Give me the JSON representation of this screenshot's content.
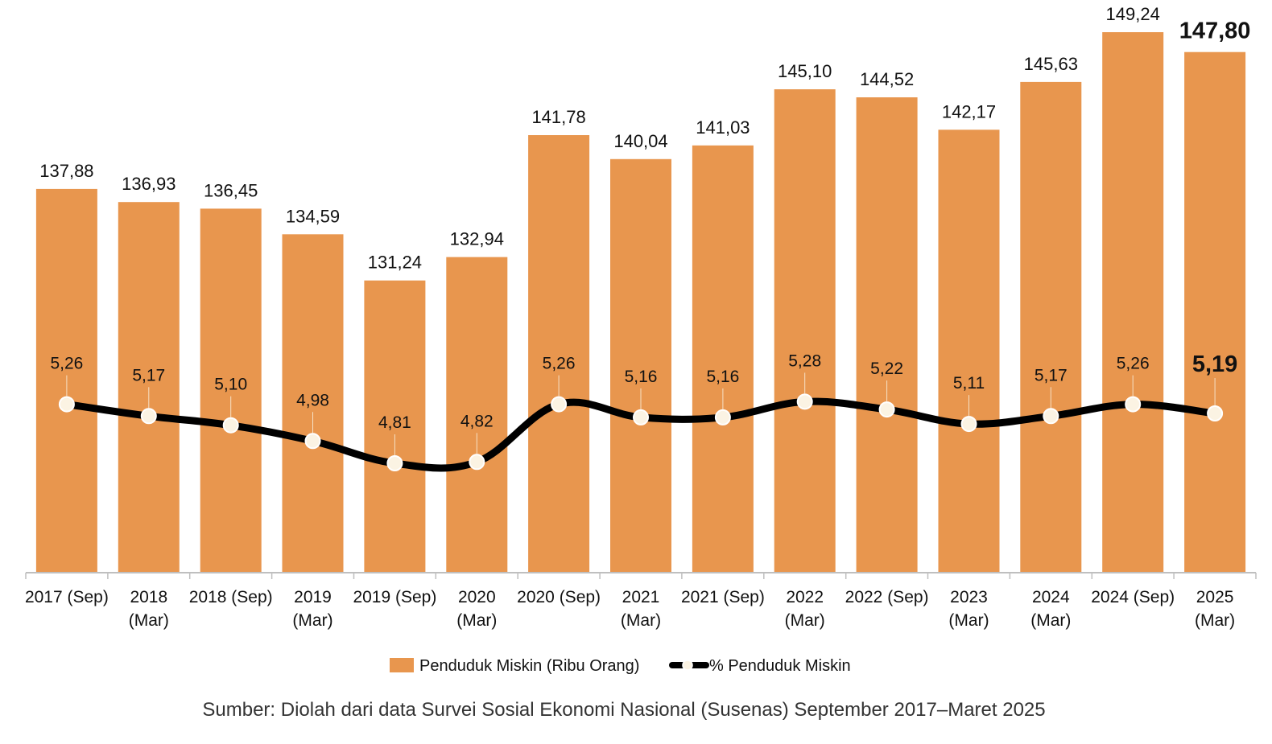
{
  "chart_data": {
    "type": "bar",
    "categories": [
      [
        "2017 (Sep)"
      ],
      [
        "2018",
        "(Mar)"
      ],
      [
        "2018 (Sep)"
      ],
      [
        "2019",
        "(Mar)"
      ],
      [
        "2019 (Sep)"
      ],
      [
        "2020",
        "(Mar)"
      ],
      [
        "2020 (Sep)"
      ],
      [
        "2021",
        "(Mar)"
      ],
      [
        "2021 (Sep)"
      ],
      [
        "2022",
        "(Mar)"
      ],
      [
        "2022 (Sep)"
      ],
      [
        "2023",
        "(Mar)"
      ],
      [
        "2024",
        "(Mar)"
      ],
      [
        "2024 (Sep)"
      ],
      [
        "2025",
        "(Mar)"
      ]
    ],
    "series": [
      {
        "name": "Penduduk Miskin (Ribu Orang)",
        "type": "bar",
        "color": "#E8964E",
        "values": [
          137.88,
          136.93,
          136.45,
          134.59,
          131.24,
          132.94,
          141.78,
          140.04,
          141.03,
          145.1,
          144.52,
          142.17,
          145.63,
          149.24,
          147.8
        ],
        "labels": [
          "137,88",
          "136,93",
          "136,45",
          "134,59",
          "131,24",
          "132,94",
          "141,78",
          "140,04",
          "141,03",
          "145,10",
          "144,52",
          "142,17",
          "145,63",
          "149,24",
          "147,80"
        ]
      },
      {
        "name": "% Penduduk Miskin",
        "type": "line",
        "color": "#000000",
        "values": [
          5.26,
          5.17,
          5.1,
          4.98,
          4.81,
          4.82,
          5.26,
          5.16,
          5.16,
          5.28,
          5.22,
          5.11,
          5.17,
          5.26,
          5.19
        ],
        "labels": [
          "5,26",
          "5,17",
          "5,10",
          "4,98",
          "4,81",
          "4,82",
          "5,26",
          "5,16",
          "5,16",
          "5,28",
          "5,22",
          "5,11",
          "5,17",
          "5,26",
          "5,19"
        ]
      }
    ],
    "highlight_last": true,
    "legend_position": "bottom",
    "grid": false,
    "source": "Sumber: Diolah dari data Survei Sosial Ekonomi Nasional (Susenas) September 2017–Maret 2025"
  }
}
